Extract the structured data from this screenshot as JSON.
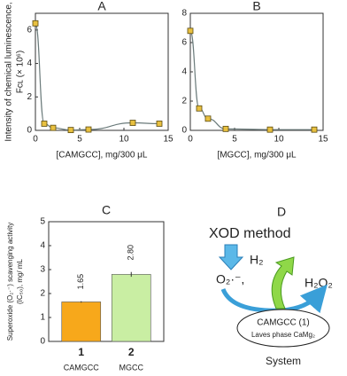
{
  "chart_data": [
    {
      "type": "line",
      "title": "A",
      "ylabel": [
        "Intensity of chemical luminescence,",
        "Fᴄʟ (× 10⁶)"
      ],
      "xlabel": "[CAMGCC], mg/300 μL",
      "x": [
        0,
        1,
        2,
        4,
        6,
        11,
        14
      ],
      "values": [
        6.4,
        0.4,
        0.15,
        0.02,
        0.05,
        0.45,
        0.4
      ],
      "xlim": [
        0,
        15
      ],
      "xticks": [
        0,
        5,
        10,
        15
      ],
      "ylim": [
        0,
        7
      ],
      "yticks": [
        0,
        2,
        4,
        6
      ],
      "color": "#6b7b7b",
      "marker_color": "#e8c040"
    },
    {
      "type": "line",
      "title": "B",
      "xlabel": "[MGCC], mg/300 μL",
      "x": [
        0,
        1,
        2,
        4,
        9,
        14
      ],
      "values": [
        6.8,
        1.5,
        0.8,
        0.1,
        0.05,
        0.05
      ],
      "xlim": [
        0,
        15
      ],
      "xticks": [
        0,
        5,
        10,
        15
      ],
      "ylim": [
        0,
        8
      ],
      "yticks": [
        0,
        2,
        4,
        6,
        8
      ],
      "color": "#6b7b7b",
      "marker_color": "#e8c040"
    },
    {
      "type": "bar",
      "title": "C",
      "ylabel": [
        "Superoxide (O₂·⁻) scavenging activity",
        "(IC₅₀), mg/ mL"
      ],
      "categories": [
        "1",
        "2"
      ],
      "category_names": [
        "CAMGCC",
        "MGCC"
      ],
      "values": [
        1.65,
        2.8
      ],
      "value_labels": [
        "1.65",
        "2.80"
      ],
      "errors": [
        0.03,
        0.1
      ],
      "colors": [
        "#f7a81b",
        "#c9eea3"
      ],
      "ylim": [
        0,
        5
      ],
      "yticks": [
        0,
        1,
        2,
        3,
        4,
        5
      ]
    }
  ],
  "diagram": {
    "title": "D",
    "method": "XOD method",
    "radical": "O₂·⁻,",
    "h2": "H₂",
    "h2o2": "H₂O₂",
    "compound": "CAMGCC (1)",
    "phase": "Laves phase CaMg₂",
    "system": "System"
  }
}
